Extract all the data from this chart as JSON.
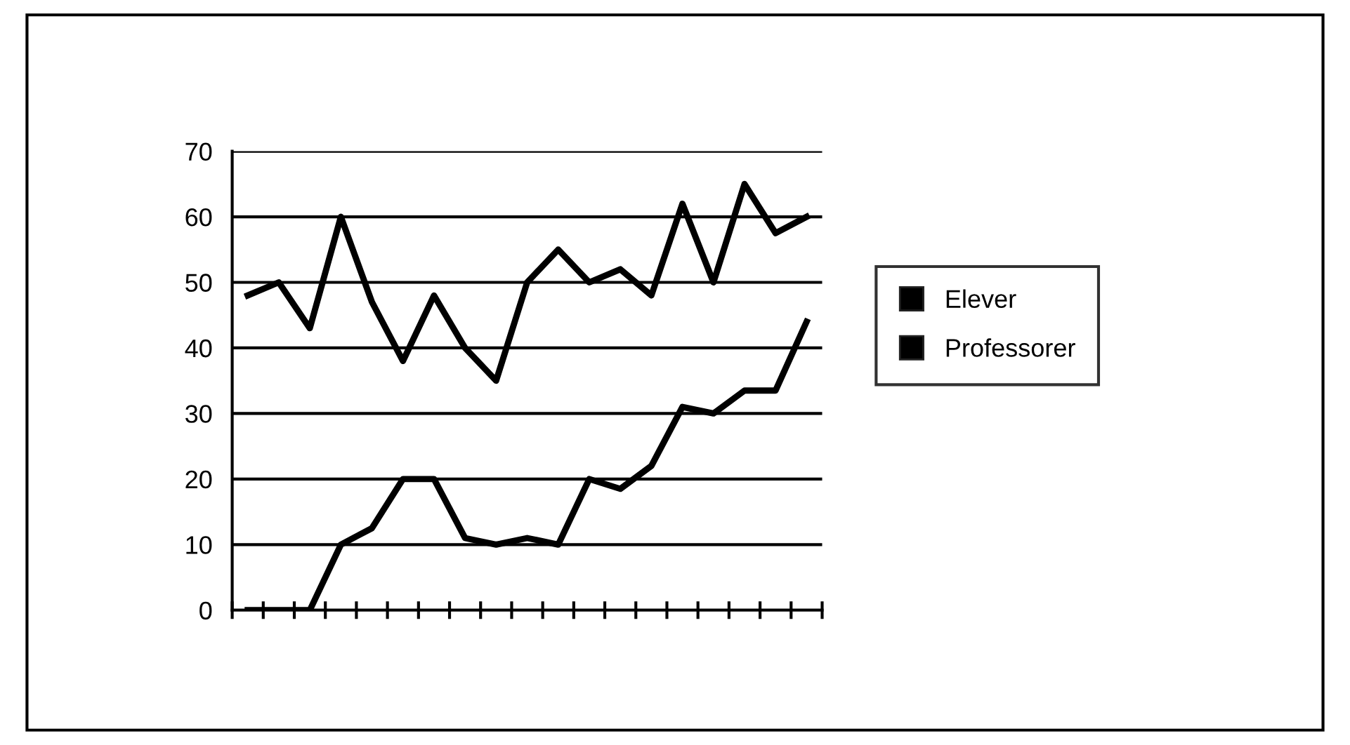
{
  "chart_data": {
    "type": "line",
    "categories": [
      null,
      null,
      null,
      null,
      null,
      null,
      null,
      null,
      null,
      null,
      null,
      null,
      null,
      null,
      null,
      null,
      null,
      null,
      null
    ],
    "series": [
      {
        "name": "Elever",
        "color": "#000000",
        "values": [
          48,
          50,
          43,
          60,
          47,
          38,
          48,
          40,
          35,
          50,
          55,
          50,
          52,
          48,
          62,
          50,
          65,
          57.5,
          60
        ]
      },
      {
        "name": "Professorer",
        "color": "#000000",
        "values": [
          0,
          0,
          0,
          10,
          12.5,
          20,
          20,
          11,
          10,
          11,
          10,
          20,
          18.5,
          22,
          31,
          30,
          33.5,
          33.5,
          44
        ]
      }
    ],
    "ylim": [
      0,
      70
    ],
    "yticks": [
      0,
      10,
      20,
      30,
      40,
      50,
      60,
      70
    ],
    "grid": "y",
    "legend": "right",
    "marker": "none",
    "line_style": "solid"
  }
}
